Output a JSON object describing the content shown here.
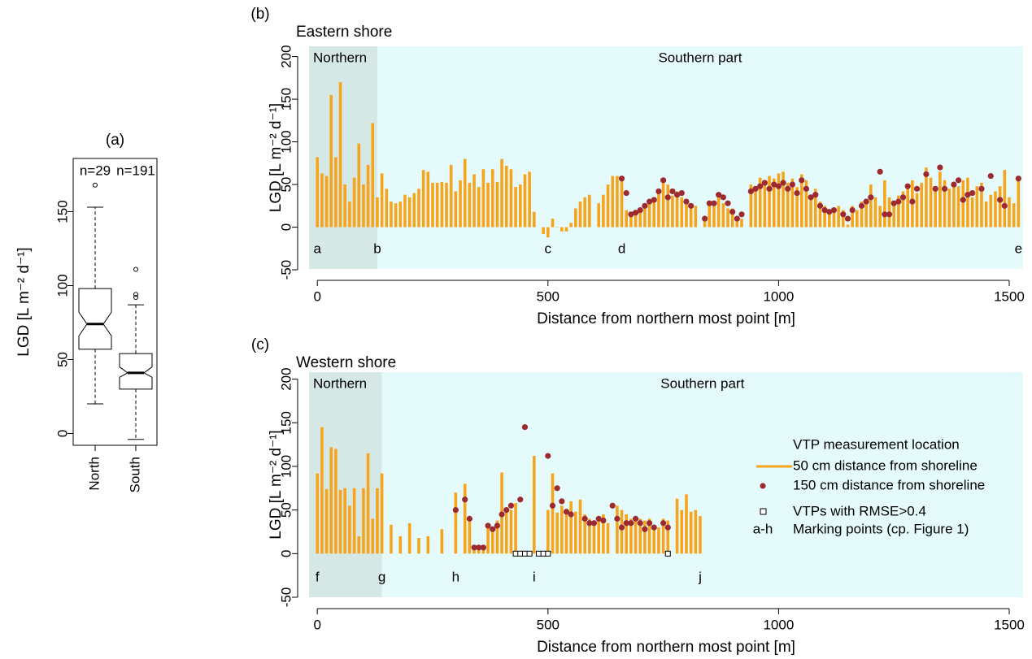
{
  "chart_data": [
    {
      "type": "box",
      "panel": "(a)",
      "ylabel": "LGD [L m⁻² d⁻¹]",
      "categories": [
        "North",
        "South"
      ],
      "counts": [
        "n=29",
        "n=191"
      ],
      "boxes": [
        {
          "whisker_low": 20,
          "q1": 57,
          "median": 74,
          "q3": 98,
          "whisker_high": 153,
          "notch_low": 66,
          "notch_high": 82,
          "outliers": [
            168
          ]
        },
        {
          "whisker_low": -4,
          "q1": 30,
          "median": 41,
          "q3": 54,
          "whisker_high": 87,
          "notch_low": 38,
          "notch_high": 45,
          "outliers": [
            92,
            94,
            111
          ]
        }
      ],
      "ylim": [
        -8,
        186
      ],
      "yticks": [
        0,
        50,
        100,
        150
      ]
    },
    {
      "type": "bar",
      "panel": "(b)",
      "title": "Eastern shore",
      "ylabel": "LGD [L m⁻² d⁻¹]",
      "xlabel": "Distance from northern most point [m]",
      "regions": [
        {
          "label": "Northern",
          "range": [
            -18,
            130
          ],
          "color": "#d6e8e6"
        },
        {
          "label": "Southern part",
          "range": [
            130,
            1530
          ],
          "color": "#e5fbfb"
        }
      ],
      "markers": [
        {
          "label": "a",
          "x": 0
        },
        {
          "label": "b",
          "x": 130
        },
        {
          "label": "c",
          "x": 500
        },
        {
          "label": "d",
          "x": 660
        },
        {
          "label": "e",
          "x": 1520
        }
      ],
      "series": [
        {
          "style": "bar",
          "color": "#f7a41d",
          "x": [
            0,
            10,
            20,
            30,
            40,
            50,
            60,
            70,
            80,
            90,
            100,
            110,
            120,
            130,
            140,
            150,
            160,
            170,
            180,
            190,
            200,
            210,
            220,
            230,
            240,
            250,
            260,
            270,
            280,
            290,
            300,
            310,
            320,
            330,
            340,
            350,
            360,
            370,
            380,
            390,
            400,
            410,
            420,
            430,
            440,
            450,
            460,
            470,
            490,
            500,
            510,
            520,
            530,
            540,
            550,
            560,
            570,
            580,
            590,
            610,
            620,
            630,
            640,
            650,
            660,
            670,
            680,
            690,
            700,
            710,
            720,
            730,
            740,
            750,
            760,
            770,
            780,
            790,
            800,
            810,
            820,
            840,
            850,
            860,
            870,
            880,
            890,
            900,
            910,
            920,
            940,
            950,
            960,
            970,
            980,
            990,
            1000,
            1010,
            1020,
            1030,
            1040,
            1050,
            1060,
            1070,
            1080,
            1090,
            1100,
            1110,
            1120,
            1130,
            1140,
            1150,
            1160,
            1170,
            1180,
            1190,
            1200,
            1210,
            1220,
            1230,
            1240,
            1250,
            1260,
            1270,
            1280,
            1290,
            1300,
            1310,
            1320,
            1330,
            1340,
            1350,
            1360,
            1370,
            1380,
            1390,
            1400,
            1410,
            1420,
            1430,
            1440,
            1450,
            1460,
            1470,
            1480,
            1490,
            1500,
            1510,
            1520
          ],
          "values": [
            82,
            63,
            60,
            155,
            82,
            170,
            50,
            30,
            58,
            98,
            50,
            73,
            122,
            35,
            63,
            45,
            30,
            28,
            30,
            38,
            35,
            40,
            45,
            67,
            65,
            52,
            52,
            53,
            52,
            73,
            42,
            55,
            80,
            52,
            62,
            47,
            68,
            52,
            68,
            53,
            80,
            72,
            68,
            47,
            50,
            62,
            65,
            18,
            -8,
            -12,
            10,
            0,
            -5,
            -5,
            5,
            22,
            30,
            35,
            38,
            28,
            38,
            50,
            60,
            60,
            58,
            20,
            15,
            15,
            22,
            25,
            28,
            35,
            42,
            55,
            50,
            37,
            42,
            35,
            28,
            22,
            25,
            12,
            30,
            27,
            35,
            28,
            22,
            22,
            12,
            10,
            50,
            45,
            58,
            52,
            60,
            57,
            63,
            65,
            52,
            57,
            47,
            62,
            55,
            37,
            45,
            30,
            25,
            20,
            22,
            25,
            20,
            3,
            25,
            20,
            30,
            30,
            50,
            35,
            25,
            55,
            35,
            28,
            37,
            42,
            50,
            55,
            40,
            52,
            70,
            58,
            48,
            65,
            55,
            45,
            50,
            48,
            55,
            58,
            35,
            48,
            52,
            30,
            38,
            42,
            48,
            67,
            35,
            28,
            58
          ]
        },
        {
          "style": "point",
          "color": "#9c2a30",
          "x": [
            660,
            670,
            680,
            690,
            700,
            710,
            720,
            730,
            740,
            750,
            760,
            770,
            780,
            790,
            800,
            810,
            840,
            850,
            860,
            870,
            880,
            890,
            900,
            910,
            920,
            940,
            950,
            960,
            970,
            980,
            990,
            1000,
            1010,
            1020,
            1030,
            1040,
            1050,
            1060,
            1070,
            1080,
            1090,
            1100,
            1110,
            1120,
            1140,
            1150,
            1160,
            1180,
            1190,
            1200,
            1220,
            1230,
            1240,
            1250,
            1260,
            1270,
            1280,
            1290,
            1300,
            1320,
            1340,
            1350,
            1360,
            1380,
            1390,
            1400,
            1410,
            1420,
            1440,
            1460,
            1480,
            1490,
            1520
          ],
          "values": [
            57,
            40,
            15,
            17,
            20,
            25,
            30,
            32,
            42,
            55,
            35,
            42,
            38,
            40,
            30,
            25,
            10,
            28,
            28,
            38,
            35,
            28,
            18,
            10,
            15,
            42,
            45,
            48,
            52,
            45,
            50,
            48,
            52,
            45,
            50,
            40,
            55,
            45,
            35,
            38,
            25,
            20,
            18,
            20,
            15,
            10,
            20,
            25,
            30,
            35,
            65,
            15,
            15,
            28,
            30,
            35,
            48,
            30,
            45,
            62,
            45,
            70,
            45,
            50,
            55,
            32,
            38,
            40,
            45,
            60,
            32,
            25,
            57
          ]
        }
      ],
      "xlim": [
        -18,
        1530
      ],
      "xticks": [
        0,
        500,
        1000,
        1500
      ],
      "ylim": [
        -49,
        212
      ],
      "yticks": [
        -50,
        0,
        50,
        100,
        150,
        200
      ]
    },
    {
      "type": "bar",
      "panel": "(c)",
      "title": "Western shore",
      "ylabel": "LGD [L m⁻² d⁻¹]",
      "xlabel": "Distance from northern most point [m]",
      "regions": [
        {
          "label": "Northern",
          "range": [
            -18,
            140
          ],
          "color": "#d6e8e6"
        },
        {
          "label": "Southern part",
          "range": [
            140,
            1530
          ],
          "color": "#e5fbfb"
        }
      ],
      "markers": [
        {
          "label": "f",
          "x": 0
        },
        {
          "label": "g",
          "x": 140
        },
        {
          "label": "h",
          "x": 300
        },
        {
          "label": "i",
          "x": 470
        },
        {
          "label": "j",
          "x": 830
        }
      ],
      "legend_title": "VTP measurement location",
      "marker_legend": {
        "symbol": "a-h",
        "label": "Marking points (cp. Figure 1)"
      },
      "series": [
        {
          "name": "50  cm distance from shoreline",
          "style": "bar",
          "color": "#f7a41d",
          "x": [
            0,
            10,
            20,
            30,
            40,
            50,
            60,
            70,
            80,
            90,
            100,
            110,
            120,
            130,
            140,
            160,
            180,
            200,
            220,
            240,
            270,
            300,
            320,
            330,
            340,
            350,
            360,
            370,
            380,
            390,
            400,
            410,
            420,
            430,
            470,
            500,
            510,
            520,
            530,
            540,
            550,
            560,
            570,
            580,
            590,
            600,
            610,
            620,
            630,
            650,
            660,
            670,
            680,
            690,
            700,
            710,
            720,
            730,
            740,
            750,
            760,
            780,
            790,
            800,
            810,
            820,
            830
          ],
          "values": [
            92,
            145,
            74,
            122,
            120,
            73,
            75,
            55,
            75,
            20,
            75,
            115,
            40,
            75,
            92,
            33,
            20,
            35,
            18,
            20,
            28,
            70,
            80,
            40,
            8,
            8,
            8,
            35,
            28,
            38,
            93,
            52,
            50,
            58,
            112,
            50,
            92,
            47,
            55,
            50,
            60,
            48,
            62,
            45,
            40,
            35,
            42,
            45,
            35,
            55,
            50,
            45,
            40,
            38,
            40,
            38,
            40,
            30,
            30,
            40,
            38,
            63,
            50,
            68,
            48,
            50,
            43
          ]
        },
        {
          "name": "150 cm distance from shoreline",
          "style": "point",
          "color": "#9c2a30",
          "x": [
            300,
            320,
            330,
            340,
            350,
            360,
            370,
            380,
            390,
            400,
            410,
            420,
            440,
            450,
            500,
            510,
            520,
            530,
            540,
            550,
            580,
            590,
            600,
            610,
            620,
            640,
            650,
            660,
            670,
            680,
            690,
            700,
            710,
            720,
            730,
            750,
            760
          ],
          "values": [
            50,
            62,
            40,
            7,
            7,
            7,
            32,
            28,
            32,
            45,
            50,
            55,
            62,
            145,
            112,
            55,
            75,
            60,
            48,
            45,
            40,
            35,
            35,
            40,
            38,
            55,
            40,
            30,
            35,
            35,
            40,
            35,
            28,
            35,
            30,
            35,
            30
          ]
        },
        {
          "name": "VTPs with RMSE>0.4",
          "style": "square",
          "color": "#000000",
          "x": [
            430,
            440,
            450,
            460,
            480,
            490,
            500,
            760
          ],
          "values": [
            0,
            0,
            0,
            0,
            0,
            0,
            0,
            0
          ]
        }
      ],
      "xlim": [
        -18,
        1530
      ],
      "xticks": [
        0,
        500,
        1000,
        1500
      ],
      "ylim": [
        -50,
        208
      ],
      "yticks": [
        -50,
        0,
        50,
        100,
        150,
        200
      ]
    }
  ]
}
